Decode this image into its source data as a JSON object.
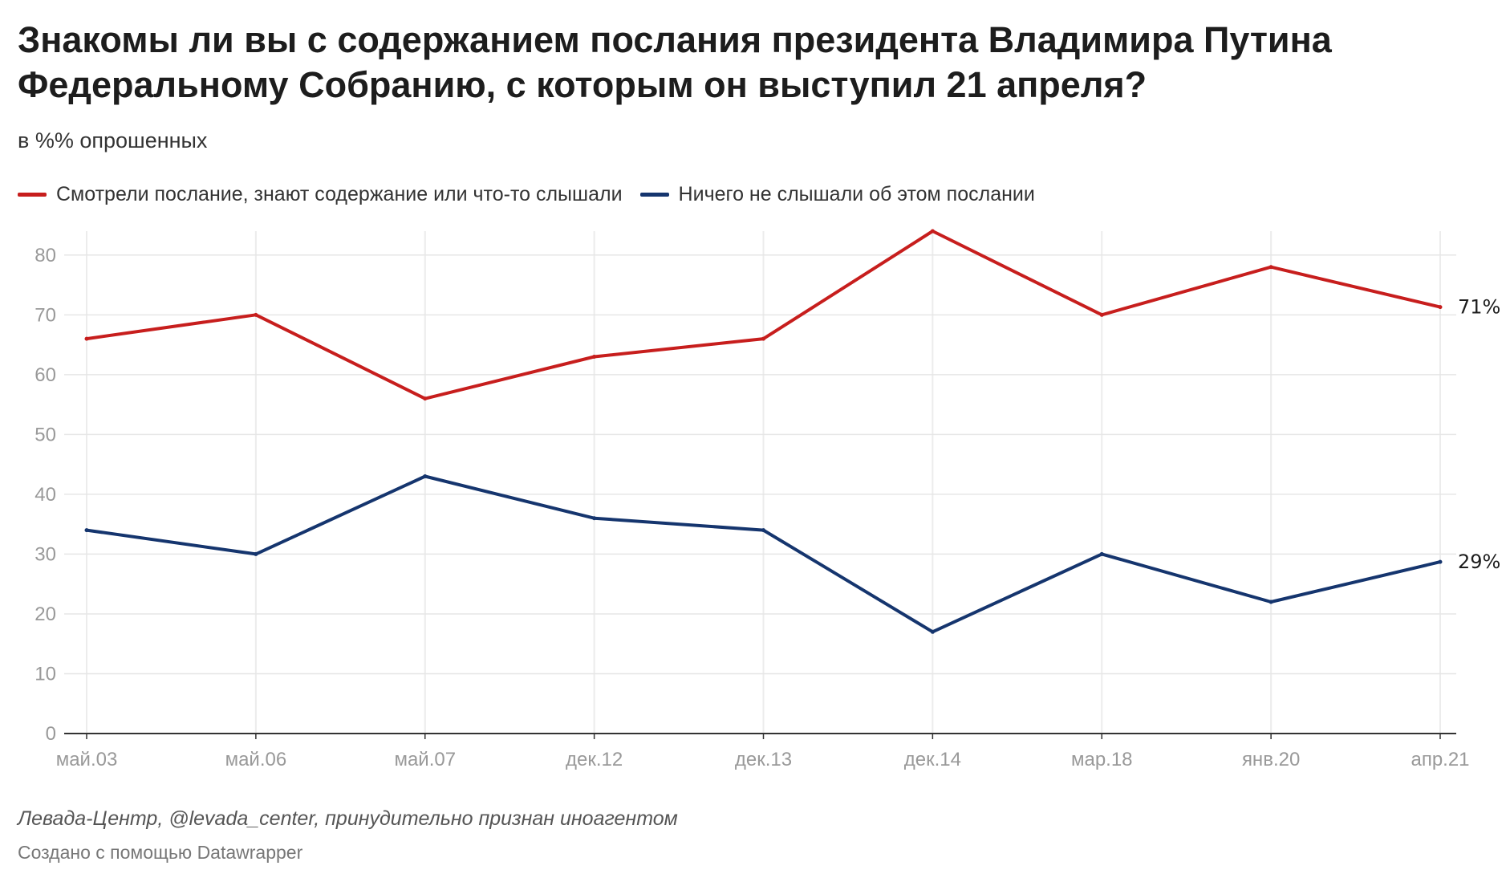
{
  "title": "Знакомы ли вы с содержанием послания президента Владимира Путина Федеральному Собранию, с которым он выступил 21 апреля?",
  "subtitle": "в %% опрошенных",
  "source": "Левада-Центр, @levada_center, принудительно признан иноагентом",
  "credit": "Создано с помощью Datawrapper",
  "chart_data": {
    "type": "line",
    "categories": [
      "май.03",
      "май.06",
      "май.07",
      "дек.12",
      "дек.13",
      "дек.14",
      "мар.18",
      "янв.20",
      "апр.21"
    ],
    "series": [
      {
        "name": "Смотрели послание, знают содержание или что-то слышали",
        "color": "#c71e1d",
        "values": [
          66,
          70,
          56,
          63,
          66,
          84,
          70,
          78,
          71.3
        ],
        "end_label": "71%"
      },
      {
        "name": "Ничего не слышали об этом послании",
        "color": "#15356e",
        "values": [
          34,
          30,
          43,
          36,
          34,
          17,
          30,
          22,
          28.7
        ],
        "end_label": "29%"
      }
    ],
    "y_ticks": [
      0,
      10,
      20,
      30,
      40,
      50,
      60,
      70,
      80
    ],
    "ylim": [
      0,
      84
    ],
    "grid": true,
    "legend_position": "top-left"
  }
}
